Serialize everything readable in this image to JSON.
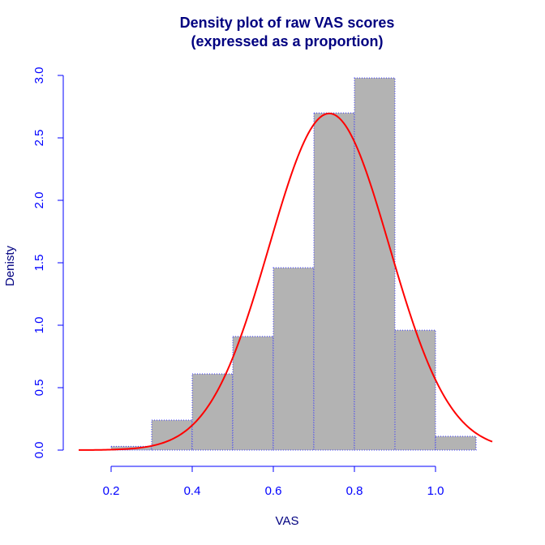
{
  "chart_data": {
    "type": "bar",
    "title_lines": [
      "Density plot of raw VAS scores",
      "(expressed as a proportion)"
    ],
    "xlabel": "VAS",
    "ylabel": "Denisty",
    "xlim": [
      0.1,
      1.15
    ],
    "ylim": [
      0,
      3.0
    ],
    "x_ticks": [
      0.2,
      0.4,
      0.6,
      0.8,
      1.0
    ],
    "x_tick_labels": [
      "0.2",
      "0.4",
      "0.6",
      "0.8",
      "1.0"
    ],
    "y_ticks": [
      0.0,
      0.5,
      1.0,
      1.5,
      2.0,
      2.5,
      3.0
    ],
    "y_tick_labels": [
      "0.0",
      "0.5",
      "1.0",
      "1.5",
      "2.0",
      "2.5",
      "3.0"
    ],
    "bins": [
      {
        "start": 0.2,
        "end": 0.3,
        "density": 0.03
      },
      {
        "start": 0.3,
        "end": 0.4,
        "density": 0.24
      },
      {
        "start": 0.4,
        "end": 0.5,
        "density": 0.61
      },
      {
        "start": 0.5,
        "end": 0.6,
        "density": 0.91
      },
      {
        "start": 0.6,
        "end": 0.7,
        "density": 1.46
      },
      {
        "start": 0.7,
        "end": 0.8,
        "density": 2.7
      },
      {
        "start": 0.8,
        "end": 0.9,
        "density": 2.98
      },
      {
        "start": 0.9,
        "end": 1.0,
        "density": 0.96
      },
      {
        "start": 1.0,
        "end": 1.1,
        "density": 0.11
      }
    ],
    "density_curve": {
      "type": "normal",
      "mean": 0.738,
      "sd": 0.148,
      "x_range": [
        0.12,
        1.14
      ]
    },
    "grid": false,
    "colors": {
      "bar_fill": "#b3b3b3",
      "bar_border": "#3333ff",
      "curve": "#ff0000",
      "axis": "#0000ff",
      "title": "#000080",
      "label": "#000080"
    }
  }
}
